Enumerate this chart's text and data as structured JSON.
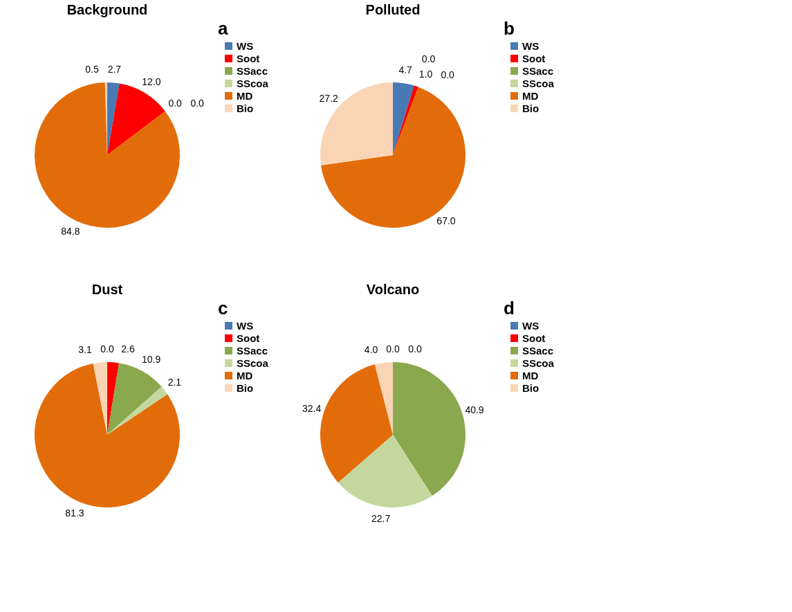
{
  "chart_data": [
    {
      "type": "pie",
      "title": "Background",
      "annotations": [
        "a"
      ],
      "categories": [
        "WS",
        "Soot",
        "SSacc",
        "SScoa",
        "MD",
        "Bio"
      ],
      "values": [
        2.7,
        12.0,
        0.0,
        0.0,
        84.8,
        0.5
      ],
      "value_labels": [
        "2.7",
        "12.0",
        "0.0",
        "0.0",
        "84.8",
        "0.5"
      ],
      "colors": [
        "#4a7ab5",
        "#ff0000",
        "#8aa84e",
        "#c4d89e",
        "#e36c0a",
        "#fad5b5"
      ],
      "data_labels": true,
      "legend": "right"
    },
    {
      "type": "pie",
      "title": "Polluted",
      "annotations": [
        "b"
      ],
      "categories": [
        "WS",
        "Soot",
        "SSacc",
        "SScoa",
        "MD",
        "Bio"
      ],
      "values": [
        4.7,
        1.0,
        0.0,
        0.0,
        67.0,
        27.2
      ],
      "value_labels": [
        "4.7",
        "1.0",
        "0.0",
        "0.0",
        "67.0",
        "27.2"
      ],
      "colors": [
        "#4a7ab5",
        "#ff0000",
        "#8aa84e",
        "#c4d89e",
        "#e36c0a",
        "#fad5b5"
      ],
      "data_labels": true,
      "legend": "right"
    },
    {
      "type": "pie",
      "title": "Dust",
      "annotations": [
        "c"
      ],
      "categories": [
        "WS",
        "Soot",
        "SSacc",
        "SScoa",
        "MD",
        "Bio"
      ],
      "values": [
        0.0,
        2.6,
        10.9,
        2.1,
        81.3,
        3.1
      ],
      "value_labels": [
        "0.0",
        "2.6",
        "10.9",
        "2.1",
        "81.3",
        "3.1"
      ],
      "colors": [
        "#4a7ab5",
        "#ff0000",
        "#8aa84e",
        "#c4d89e",
        "#e36c0a",
        "#fad5b5"
      ],
      "data_labels": true,
      "legend": "right"
    },
    {
      "type": "pie",
      "title": "Volcano",
      "annotations": [
        "d"
      ],
      "categories": [
        "WS",
        "Soot",
        "SSacc",
        "SScoa",
        "MD",
        "Bio"
      ],
      "values": [
        0.0,
        0.0,
        40.9,
        22.7,
        32.4,
        4.0
      ],
      "value_labels": [
        "0.0",
        "0.0",
        "40.9",
        "22.7",
        "32.4",
        "4.0"
      ],
      "colors": [
        "#4a7ab5",
        "#ff0000",
        "#8aa84e",
        "#c4d89e",
        "#e36c0a",
        "#fad5b5"
      ],
      "data_labels": true,
      "legend": "right"
    }
  ]
}
